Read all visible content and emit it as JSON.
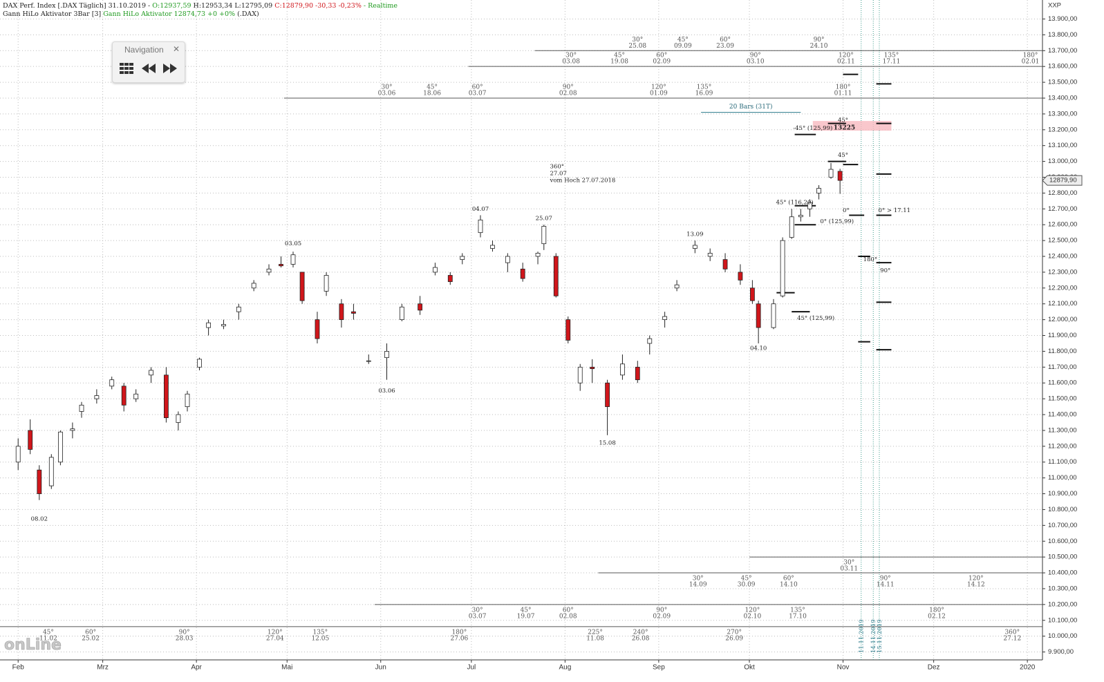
{
  "chart_data": {
    "type": "candlestick",
    "header": [
      {
        "text": "DAX Perf. Index [.DAX Täglich] 31.10.2019 -",
        "color": "#222222"
      },
      {
        "text": "O:12937,59",
        "color": "#1f9a1f"
      },
      {
        "text": "H:12953,34",
        "color": "#222222"
      },
      {
        "text": "L:12795,09",
        "color": "#222222"
      },
      {
        "text": "C:12879,90 -30,33 -0,23%",
        "color": "#d0161b"
      },
      {
        "text": "- Realtime",
        "color": "#1f9a1f"
      }
    ],
    "indicator": [
      {
        "text": "Gann HiLo Aktivator 3Bar [3]",
        "color": "#222222"
      },
      {
        "text": "Gann HiLo Aktivator 12874,73 +0 +0%",
        "color": "#1f9a1f"
      },
      {
        "text": "(.DAX)",
        "color": "#222222"
      }
    ],
    "navigation": "Navigation",
    "axis_symbol": "XXP",
    "watermark": "onLine",
    "last_price": {
      "value": 12879.9,
      "label": "12879,90"
    },
    "up_color": "#ffffff",
    "down_color": "#d0161b",
    "grid": true,
    "xlim": [
      -5,
      340
    ],
    "ylim": [
      9850,
      14020
    ],
    "xticks": [
      {
        "value": 1,
        "label": "Feb"
      },
      {
        "value": 29,
        "label": "Mrz"
      },
      {
        "value": 60,
        "label": "Apr"
      },
      {
        "value": 90,
        "label": "Mai"
      },
      {
        "value": 121,
        "label": "Jun"
      },
      {
        "value": 151,
        "label": "Jul"
      },
      {
        "value": 182,
        "label": "Aug"
      },
      {
        "value": 213,
        "label": "Sep"
      },
      {
        "value": 243,
        "label": "Okt"
      },
      {
        "value": 274,
        "label": "Nov"
      },
      {
        "value": 304,
        "label": "Dez"
      },
      {
        "value": 335,
        "label": "2020"
      }
    ],
    "yticks": [
      {
        "value": 9900,
        "label": "9.900,00"
      },
      {
        "value": 10000,
        "label": "10.000,00"
      },
      {
        "value": 10100,
        "label": "10.100,00"
      },
      {
        "value": 10200,
        "label": "10.200,00"
      },
      {
        "value": 10300,
        "label": "10.300,00"
      },
      {
        "value": 10400,
        "label": "10.400,00"
      },
      {
        "value": 10500,
        "label": "10.500,00"
      },
      {
        "value": 10600,
        "label": "10.600,00"
      },
      {
        "value": 10700,
        "label": "10.700,00"
      },
      {
        "value": 10800,
        "label": "10.800,00"
      },
      {
        "value": 10900,
        "label": "10.900,00"
      },
      {
        "value": 11000,
        "label": "11.000,00"
      },
      {
        "value": 11100,
        "label": "11.100,00"
      },
      {
        "value": 11200,
        "label": "11.200,00"
      },
      {
        "value": 11300,
        "label": "11.300,00"
      },
      {
        "value": 11400,
        "label": "11.400,00"
      },
      {
        "value": 11500,
        "label": "11.500,00"
      },
      {
        "value": 11600,
        "label": "11.600,00"
      },
      {
        "value": 11700,
        "label": "11.700,00"
      },
      {
        "value": 11800,
        "label": "11.800,00"
      },
      {
        "value": 11900,
        "label": "11.900,00"
      },
      {
        "value": 12000,
        "label": "12.000,00"
      },
      {
        "value": 12100,
        "label": "12.100,00"
      },
      {
        "value": 12200,
        "label": "12.200,00"
      },
      {
        "value": 12300,
        "label": "12.300,00"
      },
      {
        "value": 12400,
        "label": "12.400,00"
      },
      {
        "value": 12500,
        "label": "12.500,00"
      },
      {
        "value": 12600,
        "label": "12.600,00"
      },
      {
        "value": 12700,
        "label": "12.700,00"
      },
      {
        "value": 12800,
        "label": "12.800,00"
      },
      {
        "value": 12900,
        "label": "12.900,00"
      },
      {
        "value": 13000,
        "label": "13.000,00"
      },
      {
        "value": 13100,
        "label": "13.100,00"
      },
      {
        "value": 13200,
        "label": "13.200,00"
      },
      {
        "value": 13300,
        "label": "13.300,00"
      },
      {
        "value": 13400,
        "label": "13.400,00"
      },
      {
        "value": 13500,
        "label": "13.500,00"
      },
      {
        "value": 13600,
        "label": "13.600,00"
      },
      {
        "value": 13700,
        "label": "13.700,00"
      },
      {
        "value": 13800,
        "label": "13.800,00"
      },
      {
        "value": 13900,
        "label": "13.900,00"
      }
    ],
    "candles": {
      "x": [
        1,
        5,
        8,
        12,
        15,
        19,
        22,
        27,
        32,
        36,
        40,
        45,
        50,
        54,
        57,
        61,
        64,
        69,
        74,
        79,
        84,
        88,
        92,
        95,
        100,
        103,
        108,
        112,
        117,
        123,
        128,
        134,
        139,
        144,
        148,
        154,
        158,
        163,
        168,
        173,
        175,
        179,
        183,
        187,
        191,
        196,
        201,
        206,
        210,
        215,
        219,
        225,
        230,
        235,
        240,
        244,
        246,
        251,
        254,
        257,
        260,
        263,
        266,
        270,
        273
      ],
      "open": [
        11100,
        11300,
        11050,
        10950,
        11100,
        11300,
        11420,
        11500,
        11580,
        11580,
        11500,
        11650,
        11650,
        11350,
        11450,
        11700,
        11950,
        11960,
        12050,
        12200,
        12300,
        12350,
        12350,
        12300,
        12000,
        12180,
        12100,
        12050,
        11740,
        11760,
        12000,
        12100,
        12300,
        12280,
        12380,
        12550,
        12450,
        12360,
        12320,
        12400,
        12480,
        12400,
        12000,
        11600,
        11700,
        11600,
        11650,
        11700,
        11850,
        12000,
        12200,
        12450,
        12400,
        12380,
        12300,
        12200,
        12100,
        11950,
        12150,
        12520,
        12650,
        12700,
        12800,
        12900,
        12937.59
      ],
      "high": [
        11250,
        11370,
        11080,
        11150,
        11300,
        11350,
        11480,
        11560,
        11640,
        11600,
        11560,
        11700,
        11700,
        11420,
        11550,
        11760,
        12000,
        12000,
        12100,
        12250,
        12350,
        12400,
        12430,
        12300,
        12050,
        12300,
        12130,
        12100,
        11780,
        11850,
        12100,
        12150,
        12360,
        12300,
        12420,
        12660,
        12500,
        12420,
        12360,
        12430,
        12600,
        12420,
        12020,
        11720,
        11750,
        11620,
        11780,
        11740,
        11900,
        12050,
        12250,
        12500,
        12450,
        12420,
        12350,
        12250,
        12120,
        12130,
        12520,
        12700,
        12700,
        12760,
        12850,
        12990,
        12953.34
      ],
      "low": [
        11050,
        11150,
        10860,
        10930,
        11080,
        11250,
        11380,
        11470,
        11560,
        11420,
        11480,
        11600,
        11350,
        11300,
        11420,
        11680,
        11900,
        11940,
        12000,
        12180,
        12280,
        12330,
        12330,
        12100,
        11850,
        12150,
        11950,
        12000,
        11720,
        11620,
        11990,
        12030,
        12280,
        12220,
        12350,
        12520,
        12430,
        12300,
        12240,
        12350,
        12440,
        12140,
        11850,
        11550,
        11600,
        11270,
        11620,
        11600,
        11780,
        11950,
        12180,
        12420,
        12370,
        12300,
        12220,
        12100,
        11850,
        11940,
        12140,
        12510,
        12620,
        12650,
        12760,
        12890,
        12795.09
      ],
      "close": [
        11200,
        11180,
        10900,
        11130,
        11290,
        11310,
        11460,
        11520,
        11620,
        11460,
        11530,
        11680,
        11380,
        11400,
        11530,
        11750,
        11980,
        11970,
        12080,
        12230,
        12320,
        12340,
        12410,
        12120,
        11880,
        12280,
        12000,
        12040,
        11740,
        11800,
        12080,
        12060,
        12330,
        12240,
        12400,
        12630,
        12470,
        12400,
        12260,
        12420,
        12590,
        12150,
        11870,
        11700,
        11690,
        11450,
        11720,
        11620,
        11880,
        12020,
        12220,
        12470,
        12420,
        12320,
        12250,
        12120,
        11950,
        12100,
        12500,
        12650,
        12660,
        12740,
        12830,
        12950,
        12879.9
      ]
    },
    "gann_rows": [
      {
        "price": 13700,
        "start": 172,
        "place": "above",
        "labels": [
          {
            "x": 206,
            "angle": "30°",
            "date": "25.08"
          },
          {
            "x": 221,
            "angle": "45°",
            "date": "09.09"
          },
          {
            "x": 235,
            "angle": "60°",
            "date": "23.09"
          },
          {
            "x": 266,
            "angle": "90°",
            "date": "24.10"
          }
        ]
      },
      {
        "price": 13600,
        "start": 150,
        "place": "above",
        "labels": [
          {
            "x": 184,
            "angle": "30°",
            "date": "03.08"
          },
          {
            "x": 200,
            "angle": "45°",
            "date": "19.08"
          },
          {
            "x": 214,
            "angle": "60°",
            "date": "02.09"
          },
          {
            "x": 245,
            "angle": "90°",
            "date": "03.10"
          },
          {
            "x": 275,
            "angle": "120°",
            "date": "02.11"
          },
          {
            "x": 290,
            "angle": "135°",
            "date": "17.11"
          },
          {
            "x": 336,
            "angle": "180°",
            "date": "02.01"
          }
        ]
      },
      {
        "price": 13400,
        "start": 89,
        "place": "above",
        "labels": [
          {
            "x": 123,
            "angle": "30°",
            "date": "03.06"
          },
          {
            "x": 138,
            "angle": "45°",
            "date": "18.06"
          },
          {
            "x": 153,
            "angle": "60°",
            "date": "03.07"
          },
          {
            "x": 183,
            "angle": "90°",
            "date": "02.08"
          },
          {
            "x": 213,
            "angle": "120°",
            "date": "01.09"
          },
          {
            "x": 228,
            "angle": "135°",
            "date": "16.09"
          },
          {
            "x": 274,
            "angle": "180°",
            "date": "01.11"
          }
        ]
      },
      {
        "price": 10500,
        "start": 243,
        "place": "below",
        "labels": [
          {
            "x": 276,
            "angle": "30°",
            "date": "03.11"
          }
        ]
      },
      {
        "price": 10400,
        "start": 193,
        "place": "below",
        "labels": [
          {
            "x": 226,
            "angle": "30°",
            "date": "14.09"
          },
          {
            "x": 242,
            "angle": "45°",
            "date": "30.09"
          },
          {
            "x": 256,
            "angle": "60°",
            "date": "14.10"
          },
          {
            "x": 288,
            "angle": "90°",
            "date": "14.11"
          },
          {
            "x": 318,
            "angle": "120°",
            "date": "14.12"
          }
        ]
      },
      {
        "price": 10200,
        "start": 119,
        "place": "below",
        "labels": [
          {
            "x": 153,
            "angle": "30°",
            "date": "03.07"
          },
          {
            "x": 169,
            "angle": "45°",
            "date": "19.07"
          },
          {
            "x": 183,
            "angle": "60°",
            "date": "02.08"
          },
          {
            "x": 214,
            "angle": "90°",
            "date": "02.09"
          },
          {
            "x": 244,
            "angle": "120°",
            "date": "02.10"
          },
          {
            "x": 259,
            "angle": "135°",
            "date": "17.10"
          },
          {
            "x": 305,
            "angle": "180°",
            "date": "02.12"
          }
        ]
      },
      {
        "price": 10060,
        "start": -5,
        "place": "below",
        "labels": [
          {
            "x": 11,
            "angle": "45°",
            "date": "11.02"
          },
          {
            "x": 25,
            "angle": "60°",
            "date": "25.02"
          },
          {
            "x": 56,
            "angle": "90°",
            "date": "28.03"
          },
          {
            "x": 86,
            "angle": "120°",
            "date": "27.04"
          },
          {
            "x": 101,
            "angle": "135°",
            "date": "12.05"
          },
          {
            "x": 147,
            "angle": "180°",
            "date": "27.06"
          },
          {
            "x": 192,
            "angle": "225°",
            "date": "11.08"
          },
          {
            "x": 207,
            "angle": "240°",
            "date": "26.08"
          },
          {
            "x": 238,
            "angle": "270°",
            "date": "26.09"
          },
          {
            "x": 330,
            "angle": "360°",
            "date": "27.12"
          }
        ]
      }
    ],
    "annotations": [
      {
        "x": 8,
        "price": 10740,
        "lines": [
          "08.02"
        ]
      },
      {
        "x": 92,
        "price": 12480,
        "lines": [
          "03.05"
        ]
      },
      {
        "x": 123,
        "price": 11550,
        "lines": [
          "03.06"
        ]
      },
      {
        "x": 154,
        "price": 12700,
        "lines": [
          "04.07"
        ]
      },
      {
        "x": 175,
        "price": 12640,
        "lines": [
          "25.07"
        ]
      },
      {
        "x": 177,
        "price": 12880,
        "lines": [
          "360°",
          "27.07",
          "vom Hoch 27.07.2018"
        ]
      },
      {
        "x": 196,
        "price": 11220,
        "lines": [
          "15.08"
        ]
      },
      {
        "x": 225,
        "price": 12540,
        "lines": [
          "13.09"
        ]
      },
      {
        "x": 246,
        "price": 11820,
        "lines": [
          "04.10"
        ]
      },
      {
        "x": 258,
        "price": 12740,
        "lines": [
          "45° (116,20)"
        ]
      },
      {
        "x": 272,
        "price": 12620,
        "lines": [
          "0° (125,99)"
        ]
      },
      {
        "x": 275,
        "price": 12690,
        "lines": [
          "0°"
        ]
      },
      {
        "x": 291,
        "price": 12690,
        "lines": [
          "0° > 17.11"
        ]
      },
      {
        "x": 265,
        "price": 12010,
        "lines": [
          "45° (125,99)"
        ]
      },
      {
        "x": 283,
        "price": 12380,
        "lines": [
          "180°"
        ]
      },
      {
        "x": 288,
        "price": 12310,
        "lines": [
          "90°"
        ]
      },
      {
        "x": 274,
        "price": 13260,
        "lines": [
          "45°"
        ]
      },
      {
        "x": 274,
        "price": 13040,
        "lines": [
          "45°"
        ]
      },
      {
        "x": 264,
        "price": 13210,
        "lines": [
          "-45° (125,99)"
        ]
      }
    ],
    "zone": {
      "start": 264,
      "end": 290,
      "price": 13225,
      "label": "13225"
    },
    "bars_note": {
      "start": 227,
      "end": 260,
      "price": 13310,
      "label": "20 Bars (31T)"
    },
    "levels": [
      [
        258,
        265,
        13170
      ],
      [
        274,
        279,
        13550
      ],
      [
        285,
        290,
        13490
      ],
      [
        274,
        279,
        12980
      ],
      [
        285,
        290,
        12920
      ],
      [
        276,
        281,
        12660
      ],
      [
        285,
        290,
        12660
      ],
      [
        258,
        265,
        12720
      ],
      [
        258,
        265,
        12600
      ],
      [
        269,
        275,
        13240
      ],
      [
        285,
        290,
        13240
      ],
      [
        269,
        275,
        13000
      ],
      [
        252,
        258,
        12170
      ],
      [
        257,
        263,
        12050
      ],
      [
        279,
        283,
        11860
      ],
      [
        285,
        290,
        11810
      ],
      [
        285,
        290,
        12110
      ],
      [
        279,
        283,
        12400
      ],
      [
        285,
        290,
        12360
      ]
    ],
    "vlines": [
      {
        "x": 280,
        "label": "11.11.2019"
      },
      {
        "x": 284,
        "label": "14.11.2019"
      },
      {
        "x": 286,
        "label": "15.11.2019"
      }
    ]
  }
}
